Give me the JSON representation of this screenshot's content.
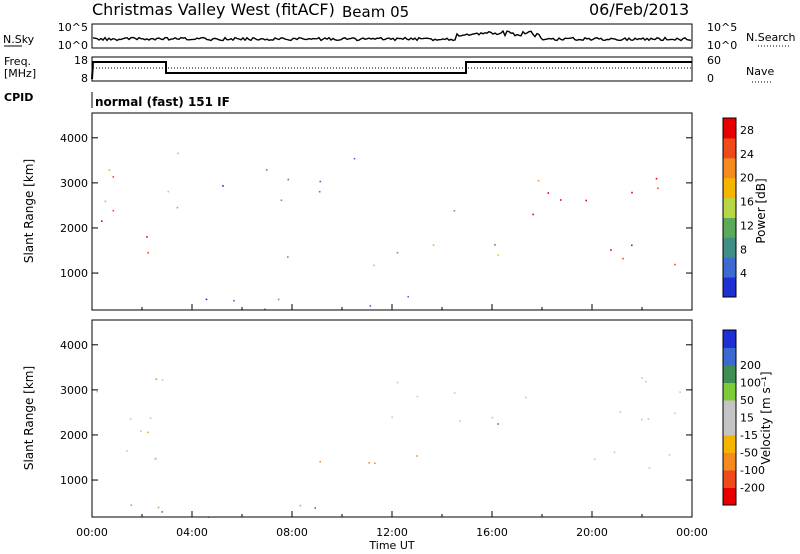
{
  "header": {
    "title": "Christmas Valley West (fitACF)",
    "beam": "Beam 05",
    "date": "06/Feb/2013"
  },
  "colors": {
    "power": [
      "#1f2fd6",
      "#3d6ad0",
      "#3f8f86",
      "#5aaa5a",
      "#b9d645",
      "#f5b400",
      "#f58a20",
      "#f04a1a",
      "#e80000"
    ],
    "velocity": [
      "#e80000",
      "#f04a1a",
      "#f58a20",
      "#f5b400",
      "#c4c4c4",
      "#c4c4c4",
      "#7ccc3a",
      "#3f8f55",
      "#3d6ad0",
      "#1f2fd6"
    ]
  },
  "panels": {
    "nsky": {
      "label": "N.Sky",
      "tick_top": "10^5",
      "tick_bottom": "10^0",
      "right_label": "N.Search"
    },
    "freq": {
      "label": "Freq.",
      "unit": "[MHz]",
      "left_ticks": [
        "18",
        "8"
      ],
      "right_ticks": [
        "60",
        "0"
      ],
      "right_label": "Nave"
    },
    "cpid": {
      "label": "CPID",
      "text": "normal (fast) 151 IF"
    },
    "power": {
      "ylabel": "Slant Range [km]",
      "colorbar_label": "Power [dB]",
      "colorbar_ticks": [
        "4",
        "8",
        "12",
        "16",
        "20",
        "24",
        "28"
      ]
    },
    "velocity": {
      "ylabel": "Slant Range [km]",
      "colorbar_label": "Velocity [m s⁻¹]",
      "colorbar_ticks": [
        "-200",
        "-100",
        "-50",
        "-15",
        "15",
        "50",
        "100",
        "200"
      ]
    },
    "xlabel": "Time UT"
  },
  "chart_data": [
    {
      "type": "heatmap",
      "title": "Power",
      "xlabel": "Time UT",
      "ylabel": "Slant Range [km]",
      "x_ticks": [
        "00:00",
        "04:00",
        "08:00",
        "12:00",
        "16:00",
        "20:00",
        "00:00"
      ],
      "y_ticks": [
        1000,
        2000,
        3000,
        4000
      ],
      "ylim": [
        180,
        4550
      ],
      "xlim_hours": [
        0,
        24
      ],
      "value_range_db": [
        0,
        30
      ],
      "scatter_regions": [
        {
          "t": [
            0.1,
            2.8
          ],
          "range": [
            1000,
            2400
          ],
          "db": 28
        },
        {
          "t": [
            0.1,
            2.8
          ],
          "range": [
            2200,
            3400
          ],
          "db": 22
        },
        {
          "t": [
            2.2,
            3.5
          ],
          "range": [
            1800,
            3800
          ],
          "db": 18
        },
        {
          "t": [
            3.5,
            5.3
          ],
          "range": [
            2300,
            3000
          ],
          "db": 6
        },
        {
          "t": [
            6.5,
            10.8
          ],
          "range": [
            2400,
            3700
          ],
          "db": 6
        },
        {
          "t": [
            7.6,
            9.2
          ],
          "range": [
            1000,
            1700
          ],
          "db": 18
        },
        {
          "t": [
            10.0,
            12.2
          ],
          "range": [
            1100,
            1600
          ],
          "db": 12
        },
        {
          "t": [
            10.8,
            13.8
          ],
          "range": [
            1400,
            2100
          ],
          "db": 16
        },
        {
          "t": [
            13.8,
            15.0
          ],
          "range": [
            2300,
            3300
          ],
          "db": 16
        },
        {
          "t": [
            15.7,
            16.6
          ],
          "range": [
            1300,
            2800
          ],
          "db": 12
        },
        {
          "t": [
            17.3,
            24.0
          ],
          "range": [
            1100,
            1700
          ],
          "db": 28
        },
        {
          "t": [
            17.3,
            24.0
          ],
          "range": [
            2300,
            3400
          ],
          "db": 28
        },
        {
          "t": [
            0.0,
            16.5
          ],
          "range": [
            180,
            500
          ],
          "db": 8
        }
      ]
    },
    {
      "type": "heatmap",
      "title": "Velocity",
      "xlabel": "Time UT",
      "ylabel": "Slant Range [km]",
      "x_ticks": [
        "00:00",
        "04:00",
        "08:00",
        "12:00",
        "16:00",
        "20:00",
        "00:00"
      ],
      "y_ticks": [
        1000,
        2000,
        3000,
        4000
      ],
      "ylim": [
        180,
        4550
      ],
      "xlim_hours": [
        0,
        24
      ],
      "value_range_ms": [
        -250,
        250
      ],
      "scatter_regions": [
        {
          "t": [
            0.1,
            2.8
          ],
          "range": [
            1000,
            3200
          ],
          "v": 0
        },
        {
          "t": [
            2.2,
            3.5
          ],
          "range": [
            1800,
            3800
          ],
          "v": -30
        },
        {
          "t": [
            7.6,
            9.2
          ],
          "range": [
            1000,
            1700
          ],
          "v": -60
        },
        {
          "t": [
            10.8,
            13.8
          ],
          "range": [
            1300,
            2100
          ],
          "v": -60
        },
        {
          "t": [
            10.8,
            15.0
          ],
          "range": [
            2300,
            3300
          ],
          "v": 0
        },
        {
          "t": [
            15.7,
            16.6
          ],
          "range": [
            1300,
            2800
          ],
          "v": 40
        },
        {
          "t": [
            17.3,
            24.0
          ],
          "range": [
            1100,
            1700
          ],
          "v": 0
        },
        {
          "t": [
            17.3,
            24.0
          ],
          "range": [
            2300,
            3400
          ],
          "v": 0
        },
        {
          "t": [
            0.0,
            16.5
          ],
          "range": [
            180,
            500
          ],
          "v": 40
        }
      ]
    }
  ]
}
